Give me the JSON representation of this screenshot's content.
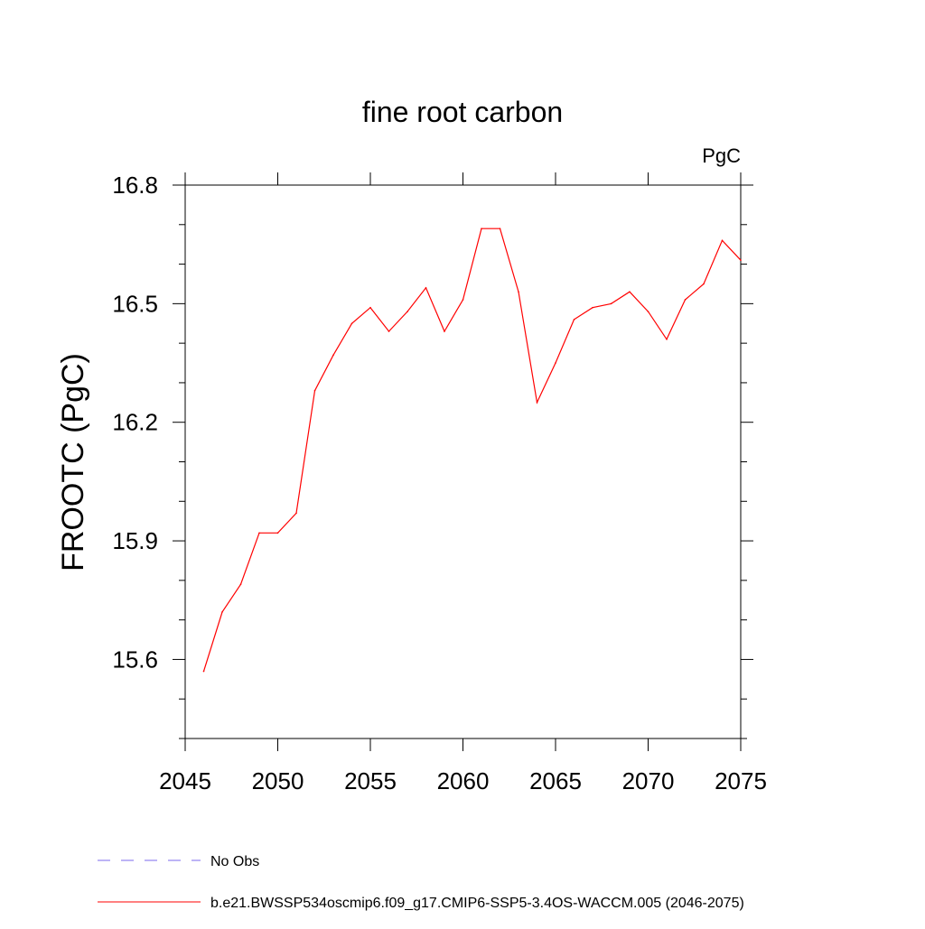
{
  "chart_data": {
    "type": "line",
    "title": "fine root carbon",
    "units_label": "PgC",
    "ylabel": "FROOTC  (PgC)",
    "xlabel": "",
    "xlim": [
      2045,
      2075
    ],
    "ylim": [
      15.4,
      16.8
    ],
    "x_ticks": [
      2045,
      2050,
      2055,
      2060,
      2065,
      2070,
      2075
    ],
    "x_tick_labels": [
      "2045",
      "2050",
      "2055",
      "2060",
      "2065",
      "2070",
      "2075"
    ],
    "y_ticks": [
      15.6,
      15.9,
      16.2,
      16.5,
      16.8
    ],
    "y_tick_labels": [
      "15.6",
      "15.9",
      "16.2",
      "16.5",
      "16.8"
    ],
    "grid": false,
    "legend_placement": "bottom",
    "series": [
      {
        "name": "b.e21.BWSSP534oscmip6.f09_g17.CMIP6-SSP5-3.4OS-WACCM.005 (2046-2075)",
        "color": "#ff0000",
        "style": "solid",
        "x": [
          2046,
          2047,
          2048,
          2049,
          2050,
          2051,
          2052,
          2053,
          2054,
          2055,
          2056,
          2057,
          2058,
          2059,
          2060,
          2061,
          2062,
          2063,
          2064,
          2065,
          2066,
          2067,
          2068,
          2069,
          2070,
          2071,
          2072,
          2073,
          2074,
          2075
        ],
        "y": [
          15.57,
          15.72,
          15.79,
          15.92,
          15.92,
          15.97,
          16.28,
          16.37,
          16.45,
          16.49,
          16.43,
          16.48,
          16.54,
          16.43,
          16.51,
          16.69,
          16.69,
          16.53,
          16.25,
          16.35,
          16.46,
          16.49,
          16.5,
          16.53,
          16.48,
          16.41,
          16.51,
          16.55,
          16.66,
          16.61
        ]
      }
    ],
    "legend": [
      {
        "label": "No Obs",
        "color": "#7b68ee",
        "style": "dashed"
      },
      {
        "label": "b.e21.BWSSP534oscmip6.f09_g17.CMIP6-SSP5-3.4OS-WACCM.005 (2046-2075)",
        "color": "#ff0000",
        "style": "solid"
      }
    ]
  }
}
